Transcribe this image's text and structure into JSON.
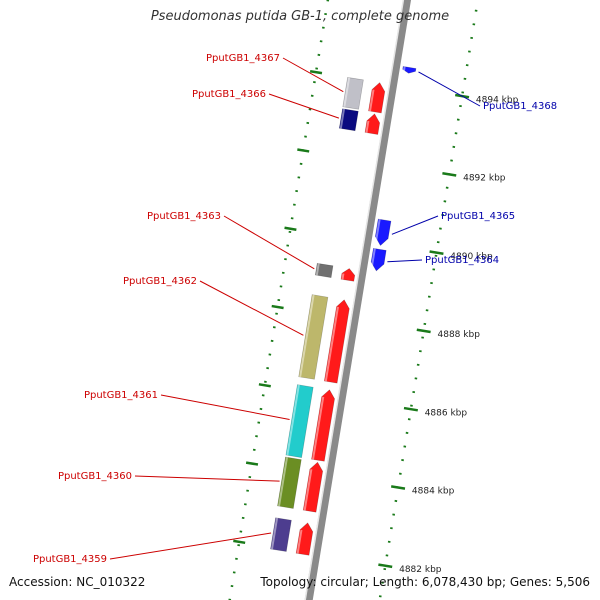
{
  "title": "Pseudomonas putida GB-1, complete genome",
  "footer": {
    "accession": "Accession: NC_010322",
    "summary": "Topology: circular; Length: 6,078,430 bp; Genes: 5,506"
  },
  "colors": {
    "forward": "#ff1a1a",
    "reverse": "#1a1aff",
    "backbone": "#8a8a8a",
    "tick": "#1a7a1a",
    "label_forward": "#cc0000",
    "label_reverse": "#0000aa"
  },
  "diagram": {
    "ticks": [
      {
        "kbp": 4882,
        "label": "4882 kbp"
      },
      {
        "kbp": 4884,
        "label": "4884 kbp"
      },
      {
        "kbp": 4886,
        "label": "4886 kbp"
      },
      {
        "kbp": 4888,
        "label": "4888 kbp"
      },
      {
        "kbp": 4890,
        "label": "4890 kbp"
      },
      {
        "kbp": 4892,
        "label": "4892 kbp"
      },
      {
        "kbp": 4894,
        "label": "4894 kbp"
      }
    ],
    "genes": [
      {
        "name": "PputGB1_4359",
        "strand": "+",
        "start_kbp": 4881.95,
        "end_kbp": 4882.75,
        "cog_color": "#4d3d8f"
      },
      {
        "name": "PputGB1_4360",
        "strand": "+",
        "start_kbp": 4883.05,
        "end_kbp": 4884.3,
        "cog_color": "#6b8e23"
      },
      {
        "name": "PputGB1_4361",
        "strand": "+",
        "start_kbp": 4884.35,
        "end_kbp": 4886.15,
        "cog_color": "#22cccc"
      },
      {
        "name": "PputGB1_4362",
        "strand": "+",
        "start_kbp": 4886.35,
        "end_kbp": 4888.45,
        "cog_color": "#bdb76b"
      },
      {
        "name": "PputGB1_4363",
        "strand": "+",
        "start_kbp": 4888.95,
        "end_kbp": 4889.25,
        "cog_color": "#707070"
      },
      {
        "name": "PputGB1_4364",
        "strand": "-",
        "start_kbp": 4889.3,
        "end_kbp": 4889.85,
        "cog_color": ""
      },
      {
        "name": "PputGB1_4365",
        "strand": "-",
        "start_kbp": 4889.95,
        "end_kbp": 4890.6,
        "cog_color": ""
      },
      {
        "name": "PputGB1_4366",
        "strand": "+",
        "start_kbp": 4892.7,
        "end_kbp": 4893.2,
        "cog_color": "#0a0a80"
      },
      {
        "name": "PputGB1_4367",
        "strand": "+",
        "start_kbp": 4893.25,
        "end_kbp": 4894.0,
        "cog_color": "#c0c0c8"
      },
      {
        "name": "PputGB1_4368",
        "strand": "-",
        "start_kbp": 4894.35,
        "end_kbp": 4894.5,
        "cog_color": ""
      }
    ]
  }
}
